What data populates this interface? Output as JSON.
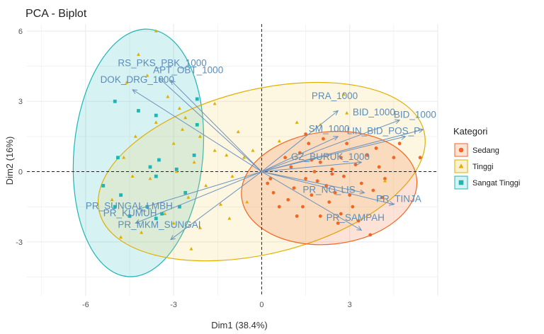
{
  "chart_data": {
    "type": "scatter",
    "title": "PCA - Biplot",
    "xlabel": "Dim1 (38.4%)",
    "ylabel": "Dim2 (16%)",
    "xlim": [
      -8.0,
      6.0
    ],
    "ylim": [
      -5.3,
      6.3
    ],
    "xticks": [
      -6,
      -3,
      0,
      3
    ],
    "yticks": [
      6,
      3,
      0,
      -3
    ],
    "grid": true,
    "legend": {
      "title": "Kategori",
      "placement": "right",
      "entries": [
        {
          "label": "Sedang",
          "color": "#f26522",
          "shape": "circle"
        },
        {
          "label": "Tinggi",
          "color": "#e0b000",
          "shape": "triangle"
        },
        {
          "label": "Sangat Tinggi",
          "color": "#1fb5b5",
          "shape": "square"
        }
      ]
    },
    "ellipses": [
      {
        "group": "Sangat Tinggi",
        "cx": -4.2,
        "cy": 0.8,
        "rx": 2.2,
        "ry": 5.3,
        "angle": -5,
        "fill": "#1fb5b5",
        "stroke": "#1fb5b5"
      },
      {
        "group": "Tinggi",
        "cx": 0.0,
        "cy": 0.0,
        "rx": 5.7,
        "ry": 3.5,
        "angle": 14,
        "fill": "#f5cf5a",
        "stroke": "#e0b000"
      },
      {
        "group": "Sedang",
        "cx": 2.3,
        "cy": -0.7,
        "rx": 3.0,
        "ry": 2.4,
        "angle": 6,
        "fill": "#f26522",
        "stroke": "#f26522"
      }
    ],
    "variables": [
      {
        "label": "RS_PKS_PBK_1000",
        "x": -3.5,
        "y": 4.0,
        "lx": -4.9,
        "ly": 4.5
      },
      {
        "label": "APT_OBT_1000",
        "x": -3.1,
        "y": 3.9,
        "lx": -3.7,
        "ly": 4.2
      },
      {
        "label": "DOK_DRG_1000",
        "x": -4.4,
        "y": 3.5,
        "lx": -5.5,
        "ly": 3.8
      },
      {
        "label": "PRA_1000",
        "x": 2.6,
        "y": 2.6,
        "lx": 1.7,
        "ly": 3.1
      },
      {
        "label": "BID_1000",
        "x": 4.7,
        "y": 2.2,
        "lx": 3.1,
        "ly": 2.4
      },
      {
        "label": "BID_1000",
        "x": 5.5,
        "y": 1.8,
        "lx": 4.5,
        "ly": 2.3
      },
      {
        "label": "LIN_BID_POS_P",
        "x": 4.9,
        "y": 1.5,
        "lx": 2.9,
        "ly": 1.6
      },
      {
        "label": "SM_1000",
        "x": 2.6,
        "y": 1.5,
        "lx": 1.6,
        "ly": 1.7
      },
      {
        "label": "GZ_BURUK_1000",
        "x": 3.4,
        "y": 0.4,
        "lx": 1.0,
        "ly": 0.5
      },
      {
        "label": "PR_NO_LIS",
        "x": 3.5,
        "y": -0.9,
        "lx": 1.4,
        "ly": -0.9
      },
      {
        "label": "PR_TINJA",
        "x": 4.5,
        "y": -1.4,
        "lx": 3.9,
        "ly": -1.3
      },
      {
        "label": "PR_SAMPAH",
        "x": 3.4,
        "y": -2.5,
        "lx": 2.2,
        "ly": -2.1
      },
      {
        "label": "PR_SUNGAI_LMBH",
        "x": -4.2,
        "y": -1.6,
        "lx": -6.0,
        "ly": -1.6
      },
      {
        "label": "PR_KUMUH",
        "x": -4.3,
        "y": -2.2,
        "lx": -5.4,
        "ly": -1.9
      },
      {
        "label": "PR_MKM_SUNGAI",
        "x": -3.1,
        "y": -2.9,
        "lx": -4.9,
        "ly": -2.4
      }
    ],
    "series": [
      {
        "name": "Sedang",
        "color": "#f26522",
        "points": [
          [
            0.8,
            0.6
          ],
          [
            1.0,
            0.2
          ],
          [
            1.3,
            0.8
          ],
          [
            1.5,
            -0.3
          ],
          [
            1.7,
            0.5
          ],
          [
            1.9,
            -0.4
          ],
          [
            2.0,
            0.4
          ],
          [
            2.2,
            -0.6
          ],
          [
            2.4,
            0.1
          ],
          [
            2.5,
            -0.9
          ],
          [
            2.7,
            0.6
          ],
          [
            2.8,
            -0.2
          ],
          [
            3.0,
            -1.0
          ],
          [
            3.2,
            0.3
          ],
          [
            3.4,
            -0.5
          ],
          [
            3.6,
            0.7
          ],
          [
            3.8,
            -0.8
          ],
          [
            4.0,
            0.2
          ],
          [
            4.2,
            -0.3
          ],
          [
            4.5,
            0.6
          ],
          [
            1.1,
            -0.7
          ],
          [
            1.6,
            1.2
          ],
          [
            2.1,
            1.4
          ],
          [
            2.9,
            1.2
          ],
          [
            0.4,
            -0.9
          ],
          [
            0.9,
            -1.2
          ],
          [
            1.4,
            -1.5
          ],
          [
            2.0,
            -1.9
          ],
          [
            2.6,
            -2.2
          ],
          [
            3.3,
            -2.1
          ],
          [
            3.7,
            -2.7
          ],
          [
            0.3,
            -0.3
          ],
          [
            0.6,
            -1.5
          ],
          [
            1.2,
            -1.9
          ],
          [
            2.3,
            -1.3
          ],
          [
            3.1,
            -1.5
          ],
          [
            4.1,
            -1.1
          ],
          [
            5.4,
            0.6
          ],
          [
            4.7,
            1.2
          ],
          [
            1.8,
            0.0
          ],
          [
            2.7,
            -1.8
          ],
          [
            1.5,
            1.6
          ],
          [
            0.2,
            -0.5
          ],
          [
            3.9,
            1.0
          ],
          [
            2.4,
            -0.1
          ],
          [
            1.7,
            -1.0
          ]
        ]
      },
      {
        "name": "Tinggi",
        "color": "#e0b000",
        "points": [
          [
            -3.6,
            6.0
          ],
          [
            -4.2,
            5.0
          ],
          [
            -3.9,
            4.1
          ],
          [
            -4.6,
            3.8
          ],
          [
            -3.2,
            3.2
          ],
          [
            -2.6,
            2.3
          ],
          [
            -2.1,
            1.5
          ],
          [
            -3.0,
            1.2
          ],
          [
            -1.6,
            0.9
          ],
          [
            -1.2,
            0.7
          ],
          [
            -0.6,
            0.6
          ],
          [
            -2.3,
            0.4
          ],
          [
            -2.9,
            0.0
          ],
          [
            -3.8,
            -0.3
          ],
          [
            -4.4,
            -0.2
          ],
          [
            -1.9,
            -0.6
          ],
          [
            -2.5,
            -1.1
          ],
          [
            -1.4,
            -1.4
          ],
          [
            -3.3,
            -1.8
          ],
          [
            -2.1,
            -2.4
          ],
          [
            -4.1,
            -2.6
          ],
          [
            -4.8,
            -2.8
          ],
          [
            -2.4,
            -3.3
          ],
          [
            -1.0,
            -0.2
          ],
          [
            -0.3,
            0.9
          ],
          [
            0.6,
            1.3
          ],
          [
            1.2,
            2.1
          ],
          [
            2.0,
            2.0
          ],
          [
            2.8,
            3.3
          ],
          [
            2.9,
            2.5
          ],
          [
            -0.8,
            1.7
          ],
          [
            -1.6,
            2.9
          ],
          [
            -2.8,
            2.7
          ],
          [
            -3.6,
            2.1
          ],
          [
            -4.7,
            0.6
          ],
          [
            -5.1,
            -1.2
          ],
          [
            -0.5,
            -1.3
          ],
          [
            -4.3,
            1.5
          ],
          [
            -1.1,
            -2.0
          ],
          [
            -3.0,
            -2.2
          ],
          [
            4.2,
            -0.4
          ],
          [
            -2.7,
            1.8
          ]
        ]
      },
      {
        "name": "Sangat Tinggi",
        "color": "#1fb5b5",
        "points": [
          [
            -5.0,
            3.0
          ],
          [
            -4.2,
            2.6
          ],
          [
            -2.2,
            3.1
          ],
          [
            -3.6,
            2.4
          ],
          [
            -2.2,
            2.0
          ],
          [
            -4.9,
            0.6
          ],
          [
            -3.8,
            0.2
          ],
          [
            -3.6,
            -0.2
          ],
          [
            -3.5,
            0.5
          ],
          [
            -2.9,
            0.1
          ],
          [
            -5.4,
            -0.6
          ],
          [
            -4.8,
            -1.0
          ],
          [
            -3.9,
            -1.5
          ],
          [
            -4.5,
            -1.9
          ],
          [
            -3.4,
            -1.8
          ],
          [
            -2.8,
            -1.5
          ],
          [
            -3.6,
            -2.0
          ],
          [
            -5.0,
            -1.5
          ],
          [
            -2.3,
            0.7
          ],
          [
            -2.6,
            -0.9
          ]
        ]
      }
    ]
  }
}
